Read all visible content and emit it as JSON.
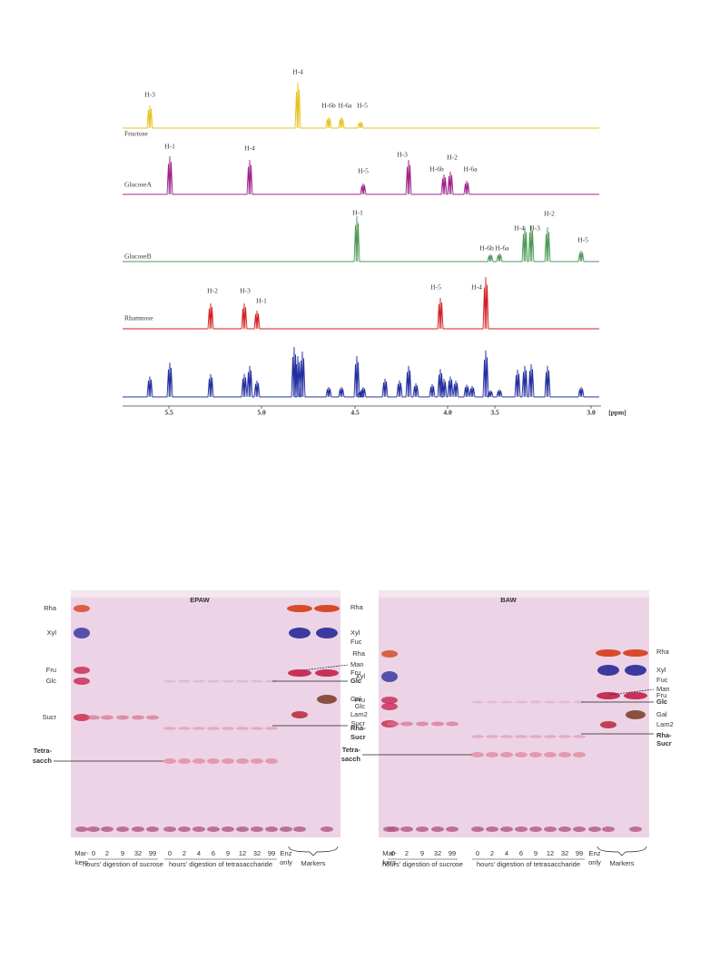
{
  "nmr": {
    "spectra": [
      {
        "name": "Fructose",
        "peaks": [
          "H-3",
          "H-4",
          "H-6b",
          "H-6a",
          "H-5"
        ]
      },
      {
        "name": "GlucoseA",
        "peaks": [
          "H-1",
          "H-4",
          "H-5",
          "H-3",
          "H-6b",
          "H-2",
          "H-6a"
        ]
      },
      {
        "name": "GlucoseB",
        "peaks": [
          "H-1",
          "H-6b",
          "H-6a",
          "H-4",
          "H-3",
          "H-2",
          "H-5"
        ]
      },
      {
        "name": "Rhamnose",
        "peaks": [
          "H-2",
          "H-3",
          "H-1",
          "H-5",
          "H-4"
        ]
      }
    ],
    "axis": {
      "ticks": [
        "5.5",
        "5.0",
        "4.5",
        "4.0",
        "3.5",
        "3.0"
      ],
      "unit": "[ppm]"
    }
  },
  "tlc": [
    {
      "title": "EPAW",
      "left_labels": [
        "Rha",
        "Xyl",
        "Fru",
        "Glc",
        "Sucr"
      ],
      "tetra": [
        "Tetra-",
        "sacch"
      ],
      "right_labels": [
        "Rha",
        "Xyl",
        "Fuc",
        "Man",
        "Fru",
        "Glc",
        "Gal",
        "Lam2",
        "Rha-",
        "Sucr"
      ],
      "markers_lane": [
        "Mar-",
        "kers"
      ],
      "sucrose_lanes": [
        "0",
        "2",
        "9",
        "32",
        "99"
      ],
      "sucrose_caption": "hours' digestion of sucrose",
      "tetra_lanes": [
        "0",
        "2",
        "4",
        "6",
        "9",
        "12",
        "32",
        "99"
      ],
      "tetra_caption": "hours' digestion of tetrasaccharide",
      "enzyme": [
        "Enz",
        "only"
      ],
      "markers_caption": "Markers"
    },
    {
      "title": "BAW",
      "left_labels": [
        "Rha",
        "Xyl",
        "Fru",
        "Glc",
        "Sucr"
      ],
      "tetra": [
        "Tetra-",
        "sacch"
      ],
      "right_labels": [
        "Rha",
        "Xyl",
        "Fuc",
        "Man",
        "Fru",
        "Glc",
        "Gal",
        "Lam2",
        "Rha-",
        "Sucr"
      ],
      "markers_lane": [
        "Mar-",
        "kers"
      ],
      "sucrose_lanes": [
        "0",
        "2",
        "9",
        "32",
        "99"
      ],
      "sucrose_caption": "hours' digestion of sucrose",
      "tetra_lanes": [
        "0",
        "2",
        "4",
        "6",
        "9",
        "12",
        "32",
        "99"
      ],
      "tetra_caption": "hours' digestion of tetrasaccharide",
      "enzyme": [
        "Enz",
        "only"
      ],
      "markers_caption": "Markers"
    }
  ]
}
